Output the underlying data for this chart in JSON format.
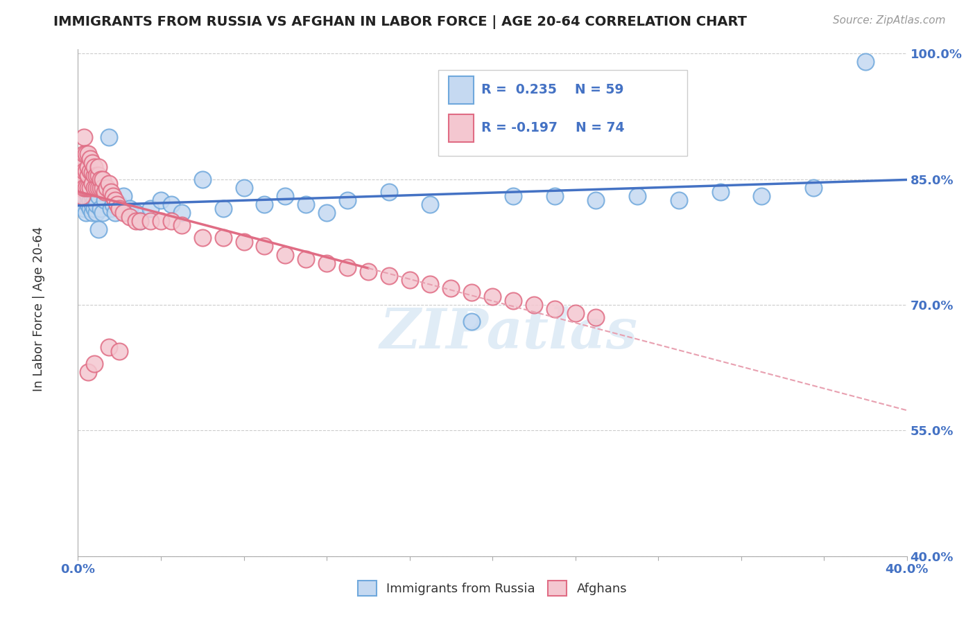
{
  "title": "IMMIGRANTS FROM RUSSIA VS AFGHAN IN LABOR FORCE | AGE 20-64 CORRELATION CHART",
  "source": "Source: ZipAtlas.com",
  "ylabel": "In Labor Force | Age 20-64",
  "xlim": [
    0.0,
    0.4
  ],
  "ylim": [
    0.4,
    1.005
  ],
  "xticks": [
    0.0,
    0.04,
    0.08,
    0.12,
    0.16,
    0.2,
    0.24,
    0.28,
    0.32,
    0.36,
    0.4
  ],
  "yticks": [
    0.4,
    0.55,
    0.7,
    0.85,
    1.0
  ],
  "color_russia": "#c5d9f1",
  "color_russia_edge": "#6fa8dc",
  "color_afghan": "#f4c7d0",
  "color_afghan_edge": "#e06c84",
  "color_russia_line": "#4472c4",
  "color_afghan_line": "#e06c84",
  "color_dashed": "#e8a0b0",
  "watermark": "ZIPatlas",
  "legend_r1": "R =  0.235",
  "legend_n1": "N = 59",
  "legend_r2": "R = -0.197",
  "legend_n2": "N = 74",
  "russia_x": [
    0.001,
    0.002,
    0.003,
    0.003,
    0.004,
    0.004,
    0.005,
    0.005,
    0.005,
    0.006,
    0.006,
    0.006,
    0.007,
    0.007,
    0.007,
    0.008,
    0.008,
    0.008,
    0.009,
    0.009,
    0.01,
    0.01,
    0.011,
    0.012,
    0.013,
    0.014,
    0.015,
    0.016,
    0.017,
    0.018,
    0.02,
    0.022,
    0.025,
    0.028,
    0.03,
    0.035,
    0.04,
    0.045,
    0.05,
    0.06,
    0.07,
    0.08,
    0.09,
    0.1,
    0.11,
    0.12,
    0.13,
    0.15,
    0.17,
    0.19,
    0.21,
    0.23,
    0.25,
    0.27,
    0.29,
    0.31,
    0.33,
    0.355,
    0.38
  ],
  "russia_y": [
    0.82,
    0.825,
    0.815,
    0.83,
    0.81,
    0.835,
    0.82,
    0.83,
    0.84,
    0.815,
    0.825,
    0.835,
    0.81,
    0.82,
    0.83,
    0.815,
    0.825,
    0.835,
    0.81,
    0.82,
    0.79,
    0.83,
    0.815,
    0.81,
    0.825,
    0.835,
    0.9,
    0.815,
    0.82,
    0.81,
    0.82,
    0.83,
    0.815,
    0.81,
    0.8,
    0.815,
    0.825,
    0.82,
    0.81,
    0.85,
    0.815,
    0.84,
    0.82,
    0.83,
    0.82,
    0.81,
    0.825,
    0.835,
    0.82,
    0.68,
    0.83,
    0.83,
    0.825,
    0.83,
    0.825,
    0.835,
    0.83,
    0.84,
    0.99
  ],
  "afghan_x": [
    0.001,
    0.001,
    0.002,
    0.002,
    0.002,
    0.003,
    0.003,
    0.003,
    0.003,
    0.004,
    0.004,
    0.004,
    0.005,
    0.005,
    0.005,
    0.005,
    0.006,
    0.006,
    0.006,
    0.007,
    0.007,
    0.007,
    0.008,
    0.008,
    0.008,
    0.009,
    0.009,
    0.01,
    0.01,
    0.01,
    0.011,
    0.011,
    0.012,
    0.012,
    0.013,
    0.014,
    0.015,
    0.016,
    0.017,
    0.018,
    0.019,
    0.02,
    0.022,
    0.025,
    0.028,
    0.03,
    0.035,
    0.04,
    0.045,
    0.05,
    0.06,
    0.07,
    0.08,
    0.09,
    0.1,
    0.11,
    0.12,
    0.13,
    0.14,
    0.15,
    0.16,
    0.17,
    0.18,
    0.19,
    0.2,
    0.21,
    0.22,
    0.23,
    0.24,
    0.25,
    0.005,
    0.008,
    0.015,
    0.02
  ],
  "afghan_y": [
    0.84,
    0.86,
    0.83,
    0.85,
    0.87,
    0.84,
    0.86,
    0.88,
    0.9,
    0.84,
    0.86,
    0.88,
    0.84,
    0.855,
    0.865,
    0.88,
    0.84,
    0.86,
    0.875,
    0.845,
    0.858,
    0.87,
    0.84,
    0.855,
    0.865,
    0.84,
    0.855,
    0.84,
    0.855,
    0.865,
    0.84,
    0.85,
    0.84,
    0.85,
    0.835,
    0.84,
    0.845,
    0.835,
    0.83,
    0.825,
    0.82,
    0.815,
    0.81,
    0.805,
    0.8,
    0.8,
    0.8,
    0.8,
    0.8,
    0.795,
    0.78,
    0.78,
    0.775,
    0.77,
    0.76,
    0.755,
    0.75,
    0.745,
    0.74,
    0.735,
    0.73,
    0.725,
    0.72,
    0.715,
    0.71,
    0.705,
    0.7,
    0.695,
    0.69,
    0.685,
    0.62,
    0.63,
    0.65,
    0.645
  ]
}
